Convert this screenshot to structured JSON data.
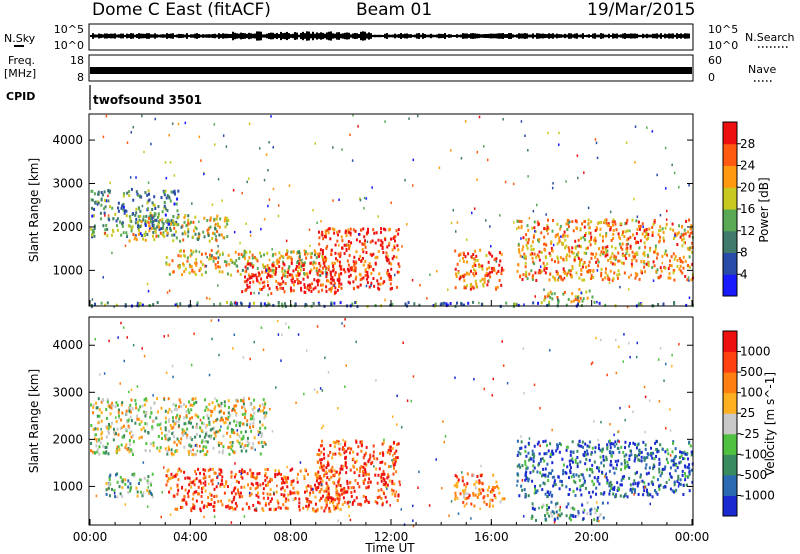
{
  "header": {
    "station": "Dome C East (fitACF)",
    "beam": "Beam 01",
    "date": "19/Mar/2015"
  },
  "nsky_panel": {
    "left_label": "N.Sky",
    "right_label": "N.Search",
    "left_ticks": [
      "10^5",
      "10^0"
    ],
    "right_ticks": [
      "10^5",
      "10^0"
    ]
  },
  "freq_panel": {
    "left_label_line1": "Freq.",
    "left_label_line2": "[MHz]",
    "right_label": "Nave",
    "left_ticks": [
      "18",
      "8"
    ],
    "right_ticks": [
      "60",
      "0"
    ]
  },
  "cpid": {
    "label": "CPID",
    "value": "twofsound 3501"
  },
  "x_axis": {
    "title": "Time UT",
    "tick_labels": [
      "00:00",
      "04:00",
      "08:00",
      "12:00",
      "16:00",
      "20:00",
      "00:00"
    ]
  },
  "chart_data": [
    {
      "type": "heatmap",
      "title": "Power",
      "ylabel": "Slant Range [km]",
      "xlabel": "Time UT",
      "y_tick_labels": [
        "1000",
        "2000",
        "3000",
        "4000"
      ],
      "ylim": [
        180,
        4600
      ],
      "xlim_hours": [
        0,
        24
      ],
      "colorbar_label": "Power [dB]",
      "colorbar_ticks": [
        "4",
        "8",
        "12",
        "16",
        "20",
        "24",
        "28"
      ],
      "colorbar_colors": [
        "#1a1aff",
        "#2a4aa8",
        "#3f7a6a",
        "#5aaa55",
        "#c8c820",
        "#ff9a10",
        "#ff5a10",
        "#ee1010"
      ],
      "regions": [
        {
          "t0": 0.0,
          "t1": 3.5,
          "r0": 1800,
          "r1": 2900,
          "level": 0.35
        },
        {
          "t0": 1.5,
          "t1": 5.5,
          "r0": 1700,
          "r1": 2300,
          "level": 0.55
        },
        {
          "t0": 3.0,
          "t1": 9.5,
          "r0": 900,
          "r1": 1500,
          "level": 0.6
        },
        {
          "t0": 6.0,
          "t1": 10.0,
          "r0": 500,
          "r1": 1200,
          "level": 0.95
        },
        {
          "t0": 9.0,
          "t1": 12.3,
          "r0": 600,
          "r1": 2000,
          "level": 0.9
        },
        {
          "t0": 14.5,
          "t1": 16.5,
          "r0": 600,
          "r1": 1500,
          "level": 0.8
        },
        {
          "t0": 17.0,
          "t1": 24.0,
          "r0": 800,
          "r1": 2200,
          "level": 0.7
        },
        {
          "t0": 18.0,
          "t1": 20.0,
          "r0": 300,
          "r1": 600,
          "level": 0.6
        },
        {
          "t0": 0.0,
          "t1": 24.0,
          "r0": 200,
          "r1": 300,
          "level": 0.3
        }
      ]
    },
    {
      "type": "heatmap",
      "title": "Velocity",
      "ylabel": "Slant Range [km]",
      "xlabel": "Time UT",
      "y_tick_labels": [
        "1000",
        "2000",
        "3000",
        "4000"
      ],
      "ylim": [
        180,
        4600
      ],
      "xlim_hours": [
        0,
        24
      ],
      "colorbar_label": "Velocity [m s^-1]",
      "colorbar_ticks": [
        "1000",
        "500",
        "100",
        "25",
        "-25",
        "-100",
        "-500",
        "-1000"
      ],
      "colorbar_colors": [
        "#1a2ad0",
        "#2a6ab0",
        "#3a8a60",
        "#50c040",
        "#c8c8c8",
        "#ffb020",
        "#ff8010",
        "#ff4010",
        "#ee1010"
      ],
      "regions": [
        {
          "t0": 0.0,
          "t1": 7.0,
          "r0": 1700,
          "r1": 2900,
          "level": 0.5
        },
        {
          "t0": 3.0,
          "t1": 10.0,
          "r0": 500,
          "r1": 1400,
          "level": 0.82
        },
        {
          "t0": 9.0,
          "t1": 12.3,
          "r0": 600,
          "r1": 2000,
          "level": 0.85
        },
        {
          "t0": 14.5,
          "t1": 16.5,
          "r0": 600,
          "r1": 1300,
          "level": 0.75
        },
        {
          "t0": 17.0,
          "t1": 24.0,
          "r0": 800,
          "r1": 2000,
          "level": 0.15
        },
        {
          "t0": 17.5,
          "t1": 20.5,
          "r0": 300,
          "r1": 700,
          "level": 0.3
        },
        {
          "t0": 0.5,
          "t1": 2.5,
          "r0": 800,
          "r1": 1300,
          "level": 0.35
        }
      ]
    }
  ]
}
